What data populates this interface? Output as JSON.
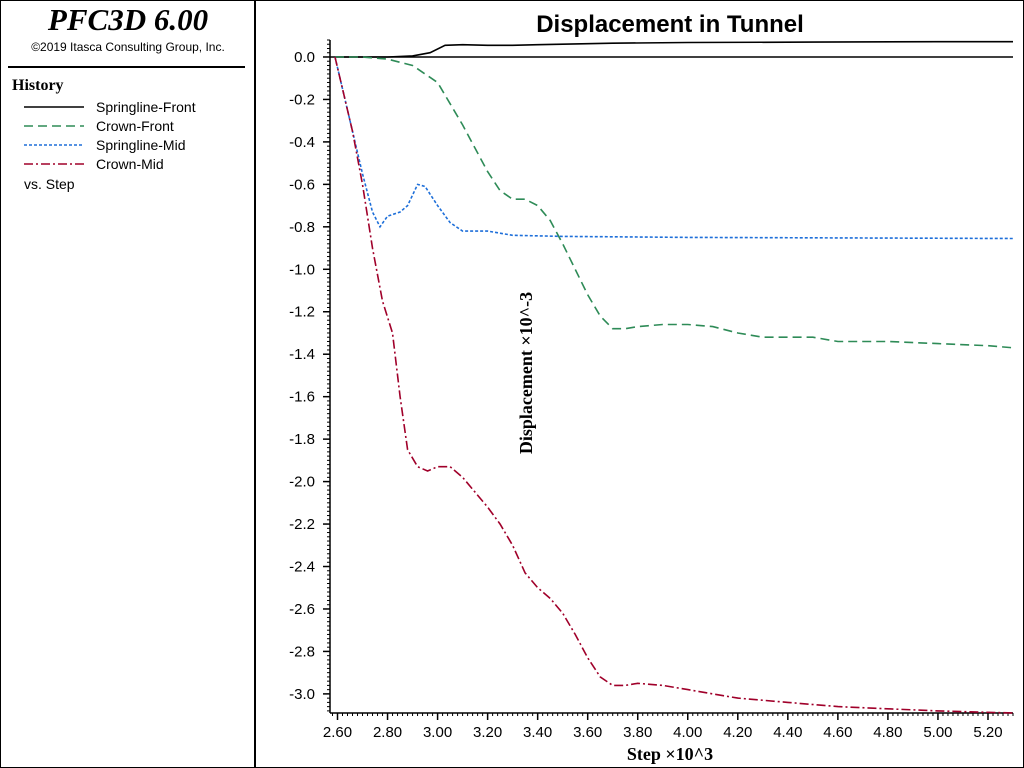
{
  "app": {
    "title": "PFC3D 6.00",
    "copyright": "©2019 Itasca Consulting Group, Inc."
  },
  "legend": {
    "heading": "History",
    "items": [
      {
        "label": "Springline-Front",
        "color": "#000000",
        "style": "solid"
      },
      {
        "label": "Crown-Front",
        "color": "#2e8b57",
        "style": "dashed"
      },
      {
        "label": "Springline-Mid",
        "color": "#1e6fd9",
        "style": "dotted"
      },
      {
        "label": "Crown-Mid",
        "color": "#a0002a",
        "style": "dashdot"
      }
    ],
    "vs_label": "vs. Step"
  },
  "chart_data": {
    "type": "line",
    "title": "Displacement in Tunnel",
    "xlabel": "Step ×10^3",
    "ylabel": "Displacement ×10^-3",
    "xlim": [
      2.57,
      5.3
    ],
    "ylim": [
      -3.09,
      0.08
    ],
    "xticks": [
      "2.60",
      "2.80",
      "3.00",
      "3.20",
      "3.40",
      "3.60",
      "3.80",
      "4.00",
      "4.20",
      "4.40",
      "4.60",
      "4.80",
      "5.00",
      "5.20"
    ],
    "yticks": [
      "0.0",
      "-0.2",
      "-0.4",
      "-0.6",
      "-0.8",
      "-1.0",
      "-1.2",
      "-1.4",
      "-1.6",
      "-1.8",
      "-2.0",
      "-2.2",
      "-2.4",
      "-2.6",
      "-2.8",
      "-3.0"
    ],
    "grid": false,
    "zero_line": true,
    "series": [
      {
        "name": "Springline-Front",
        "color": "#000000",
        "style": "solid",
        "points": [
          [
            2.59,
            0.0
          ],
          [
            2.8,
            0.0
          ],
          [
            2.9,
            0.005
          ],
          [
            2.97,
            0.02
          ],
          [
            3.03,
            0.055
          ],
          [
            3.1,
            0.058
          ],
          [
            3.2,
            0.055
          ],
          [
            3.3,
            0.055
          ],
          [
            3.4,
            0.058
          ],
          [
            3.5,
            0.06
          ],
          [
            3.7,
            0.065
          ],
          [
            4.0,
            0.068
          ],
          [
            4.5,
            0.07
          ],
          [
            5.0,
            0.072
          ],
          [
            5.3,
            0.072
          ]
        ]
      },
      {
        "name": "Crown-Front",
        "color": "#2e8b57",
        "style": "dashed",
        "points": [
          [
            2.59,
            0.0
          ],
          [
            2.7,
            0.0
          ],
          [
            2.8,
            -0.01
          ],
          [
            2.9,
            -0.04
          ],
          [
            3.0,
            -0.12
          ],
          [
            3.05,
            -0.22
          ],
          [
            3.1,
            -0.32
          ],
          [
            3.15,
            -0.43
          ],
          [
            3.2,
            -0.54
          ],
          [
            3.25,
            -0.63
          ],
          [
            3.3,
            -0.67
          ],
          [
            3.35,
            -0.67
          ],
          [
            3.4,
            -0.7
          ],
          [
            3.45,
            -0.77
          ],
          [
            3.5,
            -0.88
          ],
          [
            3.55,
            -1.0
          ],
          [
            3.6,
            -1.12
          ],
          [
            3.65,
            -1.22
          ],
          [
            3.7,
            -1.28
          ],
          [
            3.75,
            -1.28
          ],
          [
            3.8,
            -1.27
          ],
          [
            3.9,
            -1.26
          ],
          [
            4.0,
            -1.26
          ],
          [
            4.1,
            -1.27
          ],
          [
            4.2,
            -1.3
          ],
          [
            4.3,
            -1.32
          ],
          [
            4.5,
            -1.32
          ],
          [
            4.6,
            -1.34
          ],
          [
            4.8,
            -1.34
          ],
          [
            5.0,
            -1.35
          ],
          [
            5.2,
            -1.36
          ],
          [
            5.3,
            -1.37
          ]
        ]
      },
      {
        "name": "Springline-Mid",
        "color": "#1e6fd9",
        "style": "dotted",
        "points": [
          [
            2.59,
            0.0
          ],
          [
            2.62,
            -0.15
          ],
          [
            2.66,
            -0.35
          ],
          [
            2.7,
            -0.55
          ],
          [
            2.74,
            -0.73
          ],
          [
            2.77,
            -0.8
          ],
          [
            2.8,
            -0.75
          ],
          [
            2.85,
            -0.73
          ],
          [
            2.88,
            -0.7
          ],
          [
            2.92,
            -0.6
          ],
          [
            2.95,
            -0.61
          ],
          [
            3.0,
            -0.7
          ],
          [
            3.05,
            -0.78
          ],
          [
            3.1,
            -0.82
          ],
          [
            3.2,
            -0.82
          ],
          [
            3.25,
            -0.83
          ],
          [
            3.3,
            -0.84
          ],
          [
            3.5,
            -0.845
          ],
          [
            4.0,
            -0.85
          ],
          [
            5.3,
            -0.855
          ]
        ]
      },
      {
        "name": "Crown-Mid",
        "color": "#a0002a",
        "style": "dashdot",
        "points": [
          [
            2.59,
            0.0
          ],
          [
            2.62,
            -0.15
          ],
          [
            2.66,
            -0.35
          ],
          [
            2.7,
            -0.6
          ],
          [
            2.74,
            -0.9
          ],
          [
            2.78,
            -1.15
          ],
          [
            2.82,
            -1.3
          ],
          [
            2.85,
            -1.6
          ],
          [
            2.88,
            -1.85
          ],
          [
            2.92,
            -1.93
          ],
          [
            2.96,
            -1.95
          ],
          [
            3.0,
            -1.93
          ],
          [
            3.05,
            -1.93
          ],
          [
            3.1,
            -1.98
          ],
          [
            3.15,
            -2.05
          ],
          [
            3.2,
            -2.12
          ],
          [
            3.25,
            -2.2
          ],
          [
            3.3,
            -2.3
          ],
          [
            3.35,
            -2.43
          ],
          [
            3.4,
            -2.5
          ],
          [
            3.45,
            -2.55
          ],
          [
            3.5,
            -2.62
          ],
          [
            3.55,
            -2.72
          ],
          [
            3.6,
            -2.83
          ],
          [
            3.65,
            -2.92
          ],
          [
            3.7,
            -2.96
          ],
          [
            3.75,
            -2.96
          ],
          [
            3.8,
            -2.95
          ],
          [
            3.9,
            -2.96
          ],
          [
            4.0,
            -2.98
          ],
          [
            4.1,
            -3.0
          ],
          [
            4.2,
            -3.02
          ],
          [
            4.4,
            -3.04
          ],
          [
            4.6,
            -3.06
          ],
          [
            4.8,
            -3.07
          ],
          [
            5.0,
            -3.08
          ],
          [
            5.3,
            -3.09
          ]
        ]
      }
    ]
  }
}
